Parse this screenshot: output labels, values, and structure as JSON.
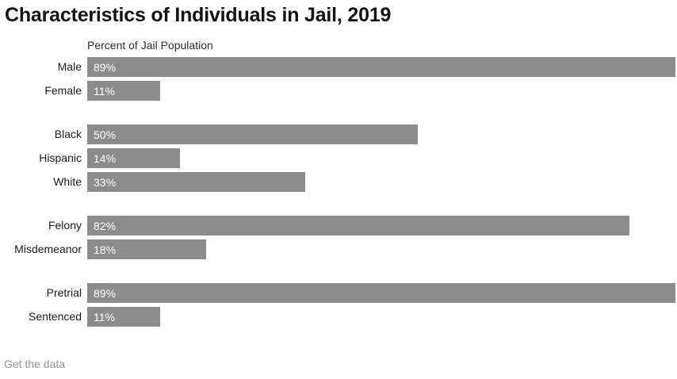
{
  "title": "Characteristics of Individuals in Jail, 2019",
  "axis_label": "Percent of Jail Population",
  "footer": {
    "link_label": "Get the data"
  },
  "colors": {
    "background": "#ffffff",
    "bar": "#8c8c8c",
    "bar_value_text": "#ffffff",
    "title_text": "#141414",
    "category_text": "#1d1d1d",
    "axis_label_text": "#2e2e2e",
    "footer_link_text": "#949494"
  },
  "chart_data": {
    "type": "bar",
    "orientation": "horizontal",
    "title": "Characteristics of Individuals in Jail, 2019",
    "xlabel": "Percent of Jail Population",
    "ylabel": "",
    "xlim": [
      0,
      89
    ],
    "scale_max": 89,
    "grid": false,
    "legend": false,
    "value_labels_inside_bars": true,
    "groups": [
      {
        "name": "sex",
        "rows": [
          {
            "label": "Male",
            "value": 89,
            "display": "89%"
          },
          {
            "label": "Female",
            "value": 11,
            "display": "11%"
          }
        ]
      },
      {
        "name": "race-ethnicity",
        "rows": [
          {
            "label": "Black",
            "value": 50,
            "display": "50%"
          },
          {
            "label": "Hispanic",
            "value": 14,
            "display": "14%"
          },
          {
            "label": "White",
            "value": 33,
            "display": "33%"
          }
        ]
      },
      {
        "name": "charge-type",
        "rows": [
          {
            "label": "Felony",
            "value": 82,
            "display": "82%"
          },
          {
            "label": "Misdemeanor",
            "value": 18,
            "display": "18%"
          }
        ]
      },
      {
        "name": "conviction-status",
        "rows": [
          {
            "label": "Pretrial",
            "value": 89,
            "display": "89%"
          },
          {
            "label": "Sentenced",
            "value": 11,
            "display": "11%"
          }
        ]
      }
    ]
  }
}
